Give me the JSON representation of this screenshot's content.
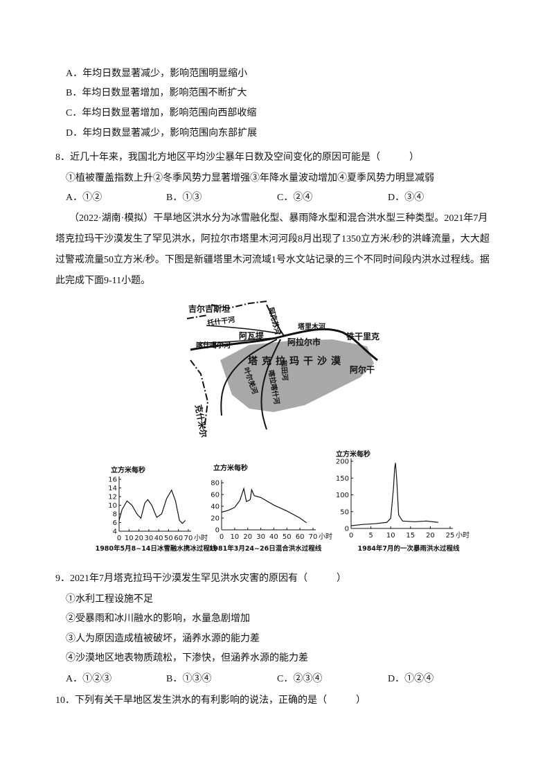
{
  "q7": {
    "options": [
      "A．年均日数显著减少，影响范围明显缩小",
      "B．年均日数显著增加，影响范围不断扩大",
      "C．年均日数显著增加，影响范围向西部收缩",
      "D．年均日数显著减少，影响范围向东部扩展"
    ]
  },
  "q8": {
    "stem": "8．近几十年来，我国北方地区平均沙尘暴年日数及空间变化的原因可能是（　　　）",
    "statements": "①植被覆盖指数上升②冬季风势力显著增强③年降水量波动增加④夏季风势力明显减弱",
    "options": [
      "A．①②",
      "B．①③",
      "C．②④",
      "D．③④"
    ]
  },
  "intro": [
    "（2022·湖南·模拟）干旱地区洪水分为冰雪融化型、暴雨降水型和混合洪水型三种类型。2021年7月",
    "塔克拉玛干沙漠发生了罕见洪水，阿拉尔市塔里木河河段8月出现了1350立方米/秒的洪峰流量，大大超",
    "过警戒流量50立方米/秒。下图是新疆塔里木河流域1号水文站记录的三个不同时间段内洪水过程线。据",
    "此完成下面9-11小题。"
  ],
  "map": {
    "labels": [
      "吉尔吉斯坦",
      "托什干河",
      "阿克苏河",
      "塔里木河",
      "铁干里克",
      "阿瓦提",
      "阿拉尔市",
      "喀什噶尔河",
      "塔克拉玛干沙漠",
      "和田河",
      "叶尔羌河",
      "喀拉喀什河",
      "阿尔干",
      "克什米尔"
    ]
  },
  "chart_data": [
    {
      "type": "line",
      "ylabel": "立方米每秒",
      "x_unit": "小时",
      "caption": "1980年5月8~14日冰雪融水携冰过程线",
      "x": [
        0,
        3,
        8,
        13,
        18,
        22,
        26,
        29,
        33,
        38,
        43,
        48,
        53,
        57,
        61,
        64,
        67
      ],
      "values": [
        6.5,
        9,
        11,
        10,
        8,
        7,
        10.5,
        11.3,
        10,
        7.2,
        8,
        11.5,
        13.5,
        11,
        6.5,
        5.8,
        6.5
      ],
      "xlim": [
        0,
        70
      ],
      "xticks": [
        0,
        10,
        20,
        30,
        40,
        50,
        60,
        70
      ],
      "ylim": [
        4,
        16
      ],
      "yticks": [
        4,
        6,
        8,
        10,
        12,
        14,
        16
      ]
    },
    {
      "type": "line",
      "ylabel": "立方米每秒",
      "x_unit": "小时",
      "caption": "1981年3月24~26日混合洪水过程线",
      "x": [
        0,
        5,
        10,
        14,
        17,
        19,
        21,
        22,
        23,
        25,
        30,
        40,
        50,
        60,
        65
      ],
      "values": [
        30,
        33,
        38,
        50,
        70,
        48,
        50,
        52,
        68,
        58,
        55,
        42,
        32,
        20,
        12
      ],
      "xlim": [
        0,
        70
      ],
      "xticks": [
        0,
        10,
        20,
        30,
        40,
        50,
        60,
        70
      ],
      "ylim": [
        0,
        80
      ],
      "yticks": [
        0,
        20,
        40,
        60,
        80
      ]
    },
    {
      "type": "line",
      "ylabel": "立方米每秒",
      "x_unit": "小时",
      "caption": "1984年7月的一次暴雨洪水过程线",
      "x": [
        0,
        3,
        6,
        9,
        10,
        10.7,
        11,
        11.2,
        11.5,
        12,
        13,
        16,
        19,
        22
      ],
      "values": [
        8,
        12,
        14,
        18,
        30,
        120,
        180,
        195,
        150,
        40,
        22,
        20,
        22,
        18
      ],
      "xlim": [
        0,
        25
      ],
      "xticks": [
        0,
        5,
        10,
        15,
        20,
        25
      ],
      "ylim": [
        0,
        200
      ],
      "yticks": [
        0,
        50,
        100,
        150,
        200
      ]
    }
  ],
  "q9": {
    "stem": "9．2021年7月塔克拉玛干沙漠发生罕见洪水灾害的原因有（　　　）",
    "statements": [
      "①水利工程设施不足",
      "②受暴雨和冰川融水的影响，水量急剧增加",
      "③人为原因造成植被破坏，涵养水源的能力差",
      "④沙漠地区地表物质疏松，下渗快，但涵养水源的能力差"
    ],
    "options": [
      "A．①②③",
      "B．①③④",
      "C．②③④",
      "D．①②④"
    ]
  },
  "q10": {
    "stem": "10．下列有关干旱地区发生洪水的有利影响的说法，正确的是（　　　）"
  }
}
